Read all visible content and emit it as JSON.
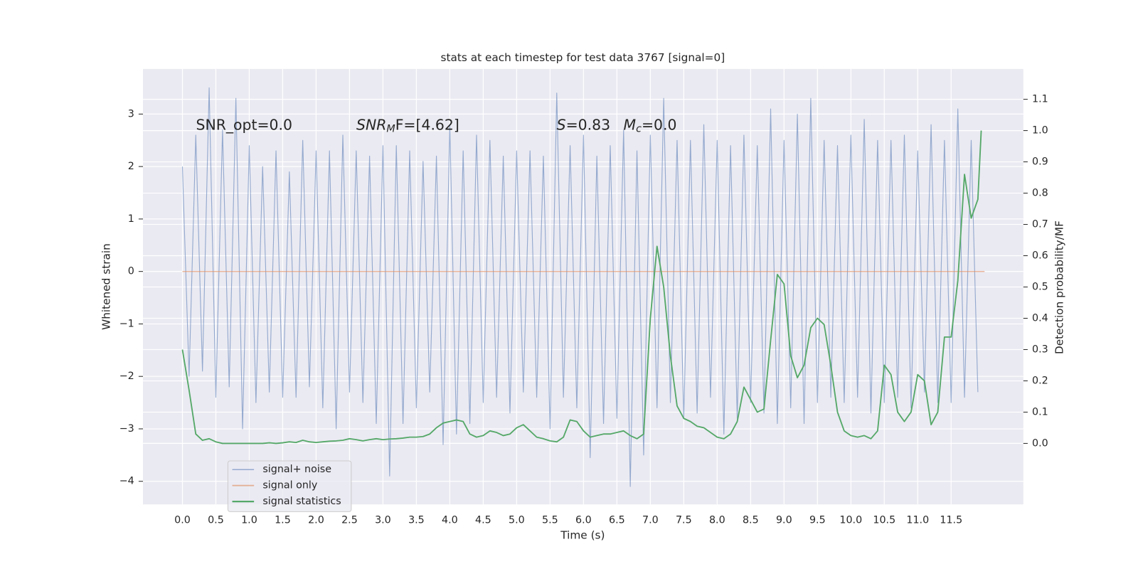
{
  "chart_data": {
    "type": "line",
    "title": "stats at each timestep for test data 3767 [signal=0]",
    "xlabel": "Time (s)",
    "ylabel": "Whitened strain",
    "y2label": "Detection probability/MF",
    "xlim": [
      -0.59,
      12.58
    ],
    "ylim": [
      -4.44,
      3.86
    ],
    "y2lim": [
      -0.195,
      1.197
    ],
    "xticks": [
      {
        "value": 0,
        "label": "0.0"
      },
      0.5,
      {
        "value": 1,
        "label": "1.0"
      },
      1.5,
      {
        "value": 2,
        "label": "2.0"
      },
      2.5,
      {
        "value": 3,
        "label": "3.0"
      },
      3.5,
      {
        "value": 4,
        "label": "4.0"
      },
      4.5,
      {
        "value": 5,
        "label": "5.0"
      },
      5.5,
      {
        "value": 6,
        "label": "6.0"
      },
      6.5,
      {
        "value": 7,
        "label": "7.0"
      },
      7.5,
      {
        "value": 8,
        "label": "8.0"
      },
      8.5,
      {
        "value": 9,
        "label": "9.0"
      },
      9.5,
      {
        "value": 10,
        "label": "10.0"
      },
      10.5,
      {
        "value": 11,
        "label": "11.0"
      },
      11.5
    ],
    "yticks": [
      {
        "value": -4,
        "label": "−4"
      },
      {
        "value": -3,
        "label": "−3"
      },
      {
        "value": -2,
        "label": "−2"
      },
      {
        "value": -1,
        "label": "−1"
      },
      0,
      1,
      2,
      3
    ],
    "y2ticks": [
      {
        "value": 0,
        "label": "0.0"
      },
      0.1,
      0.2,
      0.3,
      0.4,
      0.5,
      0.6,
      0.7,
      0.8,
      0.9,
      {
        "value": 1,
        "label": "1.0"
      },
      1.1
    ],
    "grid": true,
    "legend": "lower left",
    "annotations": [
      {
        "base": "SNR_opt=0.0"
      },
      {
        "base": "SNR",
        "sub": "M",
        "tail": "F=[4.62]"
      },
      {
        "base": "S",
        "tail": "=0.83"
      },
      {
        "base": "M",
        "sub": "c",
        "tail": "=0.0"
      }
    ],
    "series": [
      {
        "name": "signal+ noise",
        "color": "#4c72b0",
        "x": [
          0.0,
          0.1,
          0.2,
          0.3,
          0.4,
          0.5,
          0.6,
          0.7,
          0.8,
          0.9,
          1.0,
          1.1,
          1.2,
          1.3,
          1.4,
          1.5,
          1.6,
          1.7,
          1.8,
          1.9,
          2.0,
          2.1,
          2.2,
          2.3,
          2.4,
          2.5,
          2.6,
          2.7,
          2.8,
          2.9,
          3.0,
          3.1,
          3.2,
          3.3,
          3.4,
          3.5,
          3.6,
          3.7,
          3.8,
          3.9,
          4.0,
          4.1,
          4.2,
          4.3,
          4.4,
          4.5,
          4.6,
          4.7,
          4.8,
          4.9,
          5.0,
          5.1,
          5.2,
          5.3,
          5.4,
          5.5,
          5.6,
          5.7,
          5.8,
          5.9,
          6.0,
          6.1,
          6.2,
          6.3,
          6.4,
          6.5,
          6.6,
          6.7,
          6.8,
          6.9,
          7.0,
          7.1,
          7.2,
          7.3,
          7.4,
          7.5,
          7.6,
          7.7,
          7.8,
          7.9,
          8.0,
          8.1,
          8.2,
          8.3,
          8.4,
          8.5,
          8.6,
          8.7,
          8.8,
          8.9,
          9.0,
          9.1,
          9.2,
          9.3,
          9.4,
          9.5,
          9.6,
          9.7,
          9.8,
          9.9,
          10.0,
          10.1,
          10.2,
          10.3,
          10.4,
          10.5,
          10.6,
          10.7,
          10.8,
          10.9,
          11.0,
          11.1,
          11.2,
          11.3,
          11.4,
          11.5,
          11.6,
          11.7,
          11.8,
          11.9
        ],
        "values": [
          2.0,
          -2.0,
          2.6,
          -1.9,
          3.5,
          -2.4,
          2.7,
          -2.2,
          3.3,
          -3.0,
          2.4,
          -2.5,
          2.0,
          -2.3,
          2.3,
          -2.4,
          1.9,
          -2.4,
          2.5,
          -2.2,
          2.3,
          -2.6,
          2.3,
          -3.0,
          2.6,
          -2.3,
          2.3,
          -2.5,
          2.2,
          -2.9,
          2.4,
          -3.9,
          2.4,
          -2.9,
          2.3,
          -2.6,
          2.1,
          -2.3,
          2.2,
          -3.3,
          2.8,
          -3.1,
          2.3,
          -2.9,
          2.6,
          -2.5,
          2.5,
          -2.4,
          2.2,
          -2.7,
          2.3,
          -2.3,
          2.3,
          -2.4,
          2.2,
          -3.0,
          3.4,
          -2.4,
          2.4,
          -2.6,
          2.6,
          -3.55,
          2.2,
          -2.9,
          2.4,
          -2.8,
          2.7,
          -4.1,
          2.3,
          -3.5,
          2.6,
          -2.6,
          3.3,
          -2.5,
          2.5,
          -2.8,
          2.5,
          -2.7,
          2.8,
          -2.4,
          2.5,
          -3.1,
          2.4,
          -2.8,
          2.6,
          -2.5,
          2.4,
          -2.7,
          3.1,
          -2.9,
          2.5,
          -2.6,
          3.0,
          -2.9,
          3.3,
          -2.5,
          2.5,
          -2.4,
          2.4,
          -2.5,
          2.6,
          -2.4,
          2.9,
          -2.7,
          2.5,
          -2.5,
          2.5,
          -2.4,
          2.6,
          -2.6,
          2.3,
          -2.3,
          2.8,
          -2.5,
          2.5,
          -2.5,
          3.1,
          -2.4,
          2.5,
          -2.3
        ]
      },
      {
        "name": "signal only",
        "color": "#dd8452",
        "x": [
          0.0,
          12.0
        ],
        "values": [
          0,
          0
        ]
      },
      {
        "name": "signal statistics",
        "color": "#55a868",
        "axis": "y2",
        "x": [
          0.0,
          0.1,
          0.2,
          0.3,
          0.4,
          0.5,
          0.6,
          0.7,
          0.8,
          0.9,
          1.0,
          1.1,
          1.2,
          1.3,
          1.4,
          1.5,
          1.6,
          1.7,
          1.8,
          1.9,
          2.0,
          2.1,
          2.2,
          2.3,
          2.4,
          2.5,
          2.6,
          2.7,
          2.8,
          2.9,
          3.0,
          3.1,
          3.2,
          3.3,
          3.4,
          3.5,
          3.6,
          3.7,
          3.8,
          3.9,
          4.0,
          4.1,
          4.2,
          4.3,
          4.4,
          4.5,
          4.6,
          4.7,
          4.8,
          4.9,
          5.0,
          5.1,
          5.2,
          5.3,
          5.4,
          5.5,
          5.6,
          5.7,
          5.8,
          5.9,
          6.0,
          6.1,
          6.2,
          6.3,
          6.4,
          6.5,
          6.6,
          6.7,
          6.8,
          6.9,
          7.0,
          7.1,
          7.2,
          7.3,
          7.4,
          7.5,
          7.6,
          7.7,
          7.8,
          7.9,
          8.0,
          8.1,
          8.2,
          8.3,
          8.4,
          8.5,
          8.6,
          8.7,
          8.8,
          8.9,
          9.0,
          9.1,
          9.2,
          9.3,
          9.4,
          9.5,
          9.6,
          9.7,
          9.8,
          9.9,
          10.0,
          10.1,
          10.2,
          10.3,
          10.4,
          10.5,
          10.6,
          10.7,
          10.8,
          10.9,
          11.0,
          11.1,
          11.2,
          11.3,
          11.4,
          11.5,
          11.6,
          11.7,
          11.8,
          11.9,
          11.95
        ],
        "values": [
          0.3,
          0.17,
          0.03,
          0.01,
          0.015,
          0.005,
          0.0,
          0.0,
          0.0,
          0.0,
          0.0,
          0.0,
          0.0,
          0.002,
          0.0,
          0.002,
          0.005,
          0.003,
          0.01,
          0.005,
          0.003,
          0.005,
          0.007,
          0.008,
          0.01,
          0.015,
          0.012,
          0.008,
          0.012,
          0.015,
          0.012,
          0.014,
          0.015,
          0.017,
          0.02,
          0.02,
          0.022,
          0.03,
          0.05,
          0.065,
          0.07,
          0.075,
          0.07,
          0.03,
          0.02,
          0.025,
          0.04,
          0.035,
          0.025,
          0.03,
          0.05,
          0.06,
          0.04,
          0.02,
          0.015,
          0.008,
          0.005,
          0.02,
          0.075,
          0.07,
          0.04,
          0.02,
          0.025,
          0.03,
          0.03,
          0.035,
          0.04,
          0.025,
          0.015,
          0.03,
          0.4,
          0.63,
          0.5,
          0.28,
          0.12,
          0.08,
          0.07,
          0.055,
          0.05,
          0.035,
          0.02,
          0.015,
          0.03,
          0.07,
          0.18,
          0.14,
          0.1,
          0.11,
          0.33,
          0.54,
          0.51,
          0.28,
          0.21,
          0.25,
          0.37,
          0.4,
          0.38,
          0.25,
          0.1,
          0.04,
          0.025,
          0.02,
          0.025,
          0.015,
          0.04,
          0.25,
          0.22,
          0.1,
          0.07,
          0.1,
          0.22,
          0.2,
          0.06,
          0.1,
          0.34,
          0.34,
          0.52,
          0.86,
          0.72,
          0.78,
          1.0
        ]
      }
    ]
  }
}
